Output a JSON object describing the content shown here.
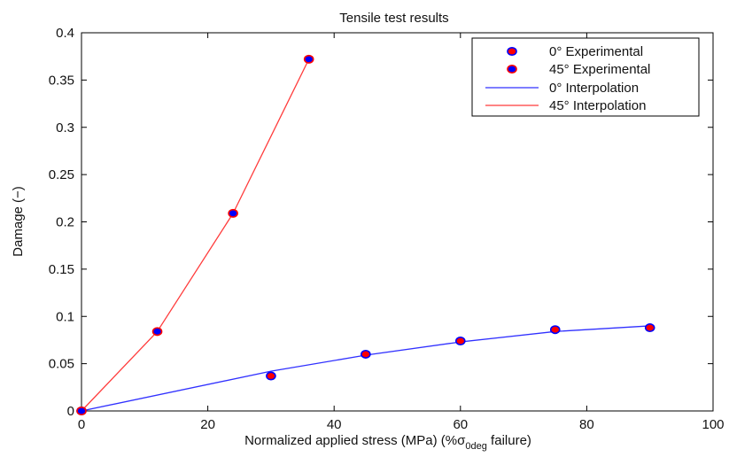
{
  "chart_data": {
    "type": "line",
    "title": "Tensile test results",
    "xlabel": {
      "prefix": "Normalized applied stress (MPa) (%σ",
      "subscript": "0deg",
      "suffix": " failure)"
    },
    "ylabel": "Damage (−)",
    "xlim": [
      0,
      100
    ],
    "ylim": [
      0,
      0.4
    ],
    "x_ticks": [
      0,
      20,
      40,
      60,
      80,
      100
    ],
    "x_tick_labels": [
      "0",
      "20",
      "40",
      "60",
      "80",
      "100"
    ],
    "y_ticks": [
      0,
      0.05,
      0.1,
      0.15,
      0.2,
      0.25,
      0.3,
      0.35,
      0.4
    ],
    "y_tick_labels": [
      "0",
      "0.05",
      "0.1",
      "0.15",
      "0.2",
      "0.25",
      "0.3",
      "0.35",
      "0.4"
    ],
    "grid": false,
    "legend_position": "top-right",
    "colors": {
      "marker_fill_0": "#ff0000",
      "marker_edge_45": "#0000ff",
      "line_0": "#3030ff",
      "line_45": "#ff3b3b",
      "axes": "#000000"
    },
    "series": [
      {
        "name": "0° Experimental",
        "kind": "scatter",
        "marker": "filled-circle",
        "x": [
          0,
          30,
          45,
          60,
          75,
          90
        ],
        "y": [
          0,
          0.037,
          0.06,
          0.074,
          0.086,
          0.088
        ]
      },
      {
        "name": "45° Experimental",
        "kind": "scatter",
        "marker": "filled-circle",
        "x": [
          0,
          12,
          24,
          36
        ],
        "y": [
          0,
          0.084,
          0.209,
          0.372
        ]
      },
      {
        "name": "0° Interpolation",
        "kind": "line",
        "x": [
          0,
          30,
          45,
          60,
          75,
          90
        ],
        "y": [
          0,
          0.042,
          0.059,
          0.073,
          0.084,
          0.09
        ]
      },
      {
        "name": "45° Interpolation",
        "kind": "line",
        "x": [
          0,
          12,
          24,
          36
        ],
        "y": [
          0,
          0.084,
          0.209,
          0.372
        ]
      }
    ]
  }
}
